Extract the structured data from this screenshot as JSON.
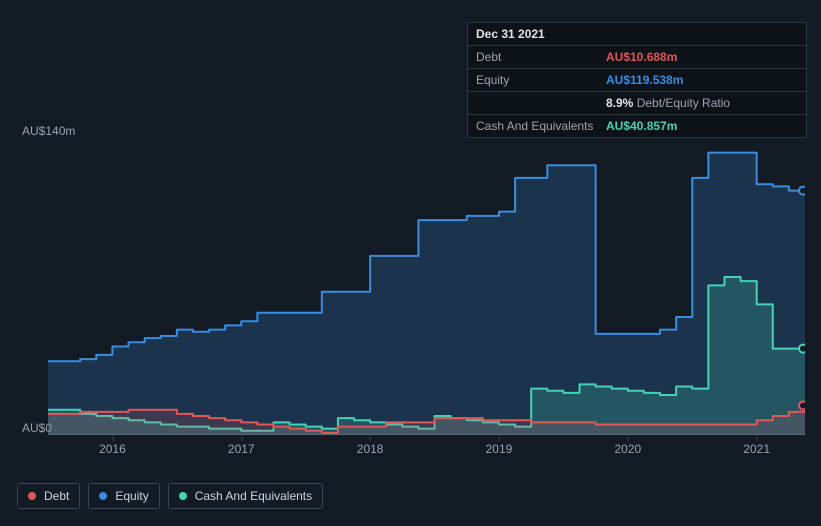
{
  "chart": {
    "type": "area",
    "background_color": "#121a23",
    "plot_background": "#121a23",
    "grid_color": "#2a3642",
    "axis_color": "#3a4552",
    "text_color": "#9aa4b0",
    "ylabel_top": "AU$140m",
    "ylabel_bottom": "AU$0",
    "ylim": [
      0,
      140
    ],
    "label_fontsize": 12,
    "x_ticks": [
      "2016",
      "2017",
      "2018",
      "2019",
      "2020",
      "2021"
    ],
    "series": {
      "equity": {
        "label": "Equity",
        "color": "#3a8de0",
        "fill": "rgba(58,141,224,0.22)",
        "data": [
          35,
          35,
          36,
          38,
          42,
          44,
          46,
          47,
          50,
          49,
          50,
          52,
          54,
          58,
          58,
          58,
          58,
          68,
          68,
          68,
          85,
          85,
          85,
          102,
          102,
          102,
          104,
          104,
          106,
          122,
          122,
          128,
          128,
          128,
          48,
          48,
          48,
          48,
          50,
          56,
          122,
          134,
          134,
          134,
          119,
          118,
          116,
          116
        ]
      },
      "cash": {
        "label": "Cash And Equivalents",
        "color": "#46d2b6",
        "fill": "rgba(70,210,182,0.22)",
        "data": [
          12,
          12,
          10,
          9,
          8,
          7,
          6,
          5,
          4,
          4,
          3,
          3,
          2,
          2,
          6,
          5,
          4,
          3,
          8,
          7,
          6,
          5,
          4,
          3,
          9,
          8,
          7,
          6,
          5,
          4,
          22,
          21,
          20,
          24,
          23,
          22,
          21,
          20,
          19,
          23,
          22,
          71,
          75,
          73,
          62,
          41,
          41,
          41
        ]
      },
      "debt": {
        "label": "Debt",
        "color": "#e05858",
        "fill": "rgba(224,88,88,0.18)",
        "data": [
          10,
          10,
          11,
          11,
          11,
          12,
          12,
          12,
          10,
          9,
          8,
          7,
          6,
          5,
          4,
          3,
          2,
          1,
          4,
          4,
          4,
          6,
          6,
          6,
          8,
          8,
          8,
          7,
          7,
          7,
          6,
          6,
          6,
          6,
          5,
          5,
          5,
          5,
          5,
          5,
          5,
          5,
          5,
          5,
          7,
          9,
          11,
          14
        ]
      }
    },
    "end_markers": {
      "equity": {
        "color": "#3a8de0",
        "value": 116
      },
      "cash": {
        "color": "#46d2b6",
        "value": 41
      },
      "debt": {
        "color": "#e05858",
        "value": 14
      }
    }
  },
  "tooltip": {
    "date": "Dec 31 2021",
    "rows": [
      {
        "label": "Debt",
        "value": "AU$10.688m",
        "color": "#e05858"
      },
      {
        "label": "Equity",
        "value": "AU$119.538m",
        "color": "#3a8de0"
      },
      {
        "label": "",
        "value": "8.9%",
        "suffix": " Debt/Equity Ratio",
        "color": "#e0e6ec"
      },
      {
        "label": "Cash And Equivalents",
        "value": "AU$40.857m",
        "color": "#46d2b6"
      }
    ]
  },
  "legend": [
    {
      "label": "Debt",
      "color": "#e05858"
    },
    {
      "label": "Equity",
      "color": "#3a8de0"
    },
    {
      "label": "Cash And Equivalents",
      "color": "#46d2b6"
    }
  ]
}
